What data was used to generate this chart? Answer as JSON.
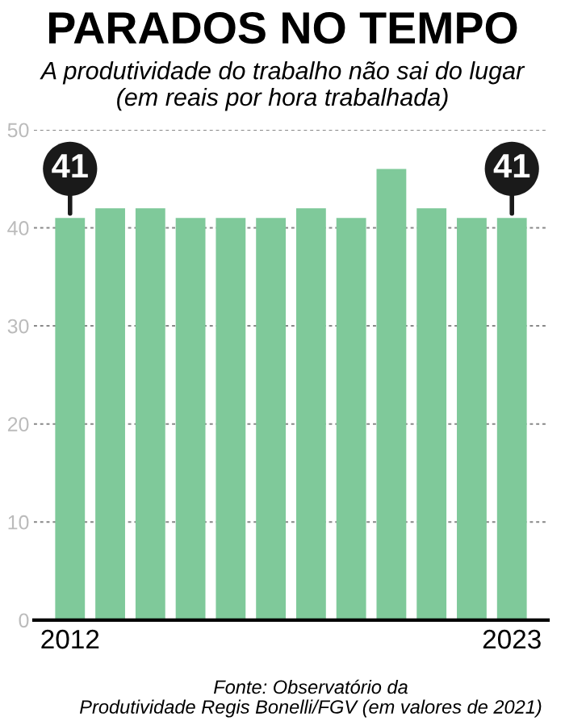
{
  "chart_data": {
    "type": "bar",
    "title": "PARADOS NO TEMPO",
    "subtitle": "A produtividade do trabalho não sai do lugar\n(em reais por hora trabalhada)",
    "categories": [
      "2012",
      null,
      null,
      null,
      null,
      null,
      null,
      null,
      null,
      null,
      null,
      "2023"
    ],
    "values": [
      41,
      42,
      42,
      41,
      41,
      41,
      42,
      41,
      46,
      42,
      41,
      41
    ],
    "value_labels": [
      "41",
      null,
      null,
      null,
      null,
      null,
      null,
      null,
      null,
      null,
      null,
      "41"
    ],
    "color": "#7fc99a",
    "ylim": [
      0,
      50
    ],
    "yticks": [
      0,
      10,
      20,
      30,
      40,
      50
    ],
    "grid": "y",
    "annotations": [
      "Fonte: Observatório da\nProdutividade Regis Bonelli/FGV (em valores de 2021)"
    ]
  }
}
